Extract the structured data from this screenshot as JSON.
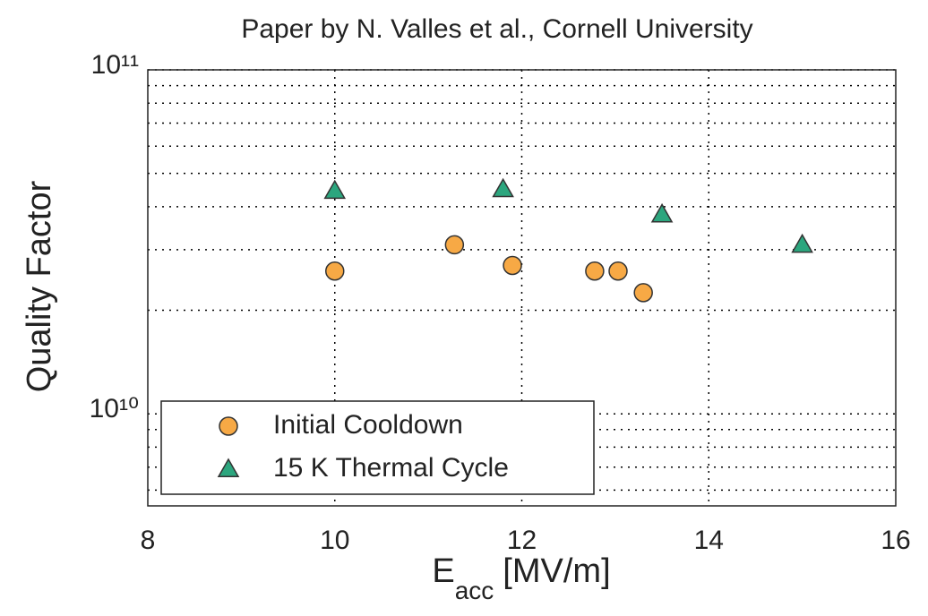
{
  "chart_data": {
    "type": "scatter",
    "title": "Paper by N. Valles et al., Cornell University",
    "xlabel": {
      "main": "E",
      "subscript": "acc",
      "unit": "[MV/m]"
    },
    "ylabel": "Quality Factor",
    "xlim": [
      8,
      16
    ],
    "xticks": [
      8,
      10,
      12,
      14,
      16
    ],
    "ylim": [
      5400000000,
      100000000000
    ],
    "yticks": [
      {
        "value": 10000000000,
        "label": "10¹⁰"
      },
      {
        "value": 100000000000,
        "label": "10¹¹"
      }
    ],
    "yminor_ticks": [
      6000000000,
      7000000000,
      8000000000,
      9000000000,
      20000000000,
      30000000000,
      40000000000,
      50000000000,
      60000000000,
      70000000000,
      80000000000,
      90000000000
    ],
    "log_y": true,
    "grid": true,
    "legend": "lower left",
    "series": [
      {
        "name": "Initial Cooldown",
        "color": "#f7a945",
        "marker": "circle",
        "x": [
          10.0,
          11.28,
          11.9,
          12.78,
          13.03,
          13.3
        ],
        "values": [
          26000000000,
          31000000000,
          27000000000,
          26000000000,
          26000000000,
          22500000000
        ]
      },
      {
        "name": "15 K Thermal Cycle",
        "color": "#2ca67e",
        "marker": "triangle",
        "x": [
          10.0,
          11.8,
          13.5,
          15.0
        ],
        "values": [
          44500000000,
          45000000000,
          38000000000,
          31000000000
        ]
      }
    ]
  }
}
